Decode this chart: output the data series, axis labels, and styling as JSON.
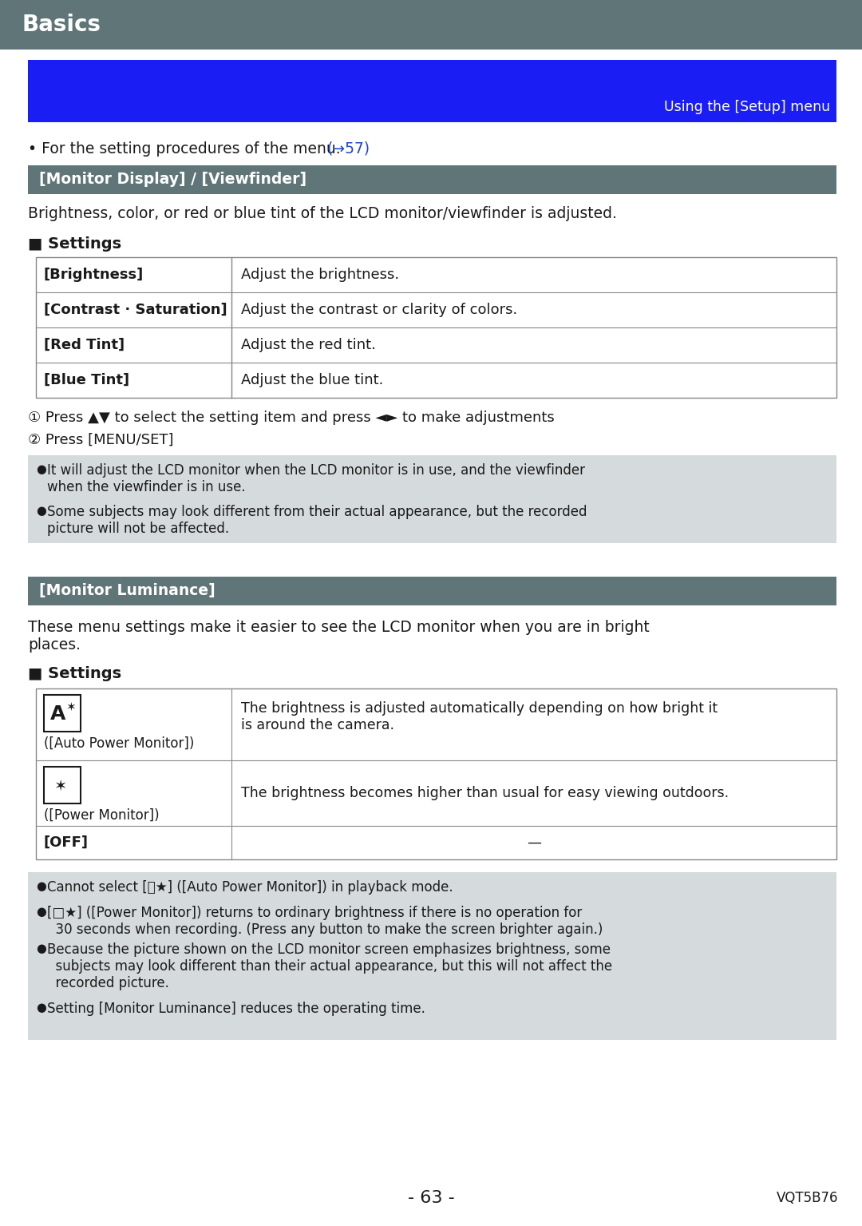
{
  "title": "Basics",
  "title_bg_color": "#5f7577",
  "title_text_color": "#ffffff",
  "blue_banner_color": "#1a1ef5",
  "blue_banner_text": "Using the [Setup] menu",
  "blue_banner_text_color": "#ffffff",
  "page_bg": "#ffffff",
  "section1_header": "[Monitor Display] / [Viewfinder]",
  "section1_header_bg": "#5f7577",
  "section1_header_color": "#ffffff",
  "section1_desc": "Brightness, color, or red or blue tint of the LCD monitor/viewfinder is adjusted.",
  "settings1_label": "■ Settings",
  "table1_rows": [
    [
      "[Brightness]",
      "Adjust the brightness."
    ],
    [
      "[Contrast · Saturation]",
      "Adjust the contrast or clarity of colors."
    ],
    [
      "[Red Tint]",
      "Adjust the red tint."
    ],
    [
      "[Blue Tint]",
      "Adjust the blue tint."
    ]
  ],
  "note1_bg": "#d5dadd",
  "note1_bullets": [
    "It will adjust the LCD monitor when the LCD monitor is in use, and the viewfinder\nwhen the viewfinder is in use.",
    "Some subjects may look different from their actual appearance, but the recorded\npicture will not be affected."
  ],
  "section2_header": "[Monitor Luminance]",
  "section2_header_bg": "#5f7577",
  "section2_header_color": "#ffffff",
  "section2_desc": "These menu settings make it easier to see the LCD monitor when you are in bright\nplaces.",
  "settings2_label": "■ Settings",
  "table2_rows": [
    [
      "([Auto Power Monitor])",
      "The brightness is adjusted automatically depending on how bright it\nis around the camera."
    ],
    [
      "([Power Monitor])",
      "The brightness becomes higher than usual for easy viewing outdoors."
    ],
    [
      "[OFF]",
      "—"
    ]
  ],
  "note2_bg": "#d5dadd",
  "note2_bullets": [
    "Cannot select [Ⓐ★] ([Auto Power Monitor]) in playback mode.",
    "[□★] ([Power Monitor]) returns to ordinary brightness if there is no operation for\n  30 seconds when recording. (Press any button to make the screen brighter again.)",
    "Because the picture shown on the LCD monitor screen emphasizes brightness, some\n  subjects may look different than their actual appearance, but this will not affect the\n  recorded picture.",
    "Setting [Monitor Luminance] reduces the operating time."
  ],
  "footer_page": "- 63 -",
  "footer_code": "VQT5B76",
  "text_color": "#1a1a1a",
  "link_color": "#2244cc",
  "table_border_color": "#888888"
}
